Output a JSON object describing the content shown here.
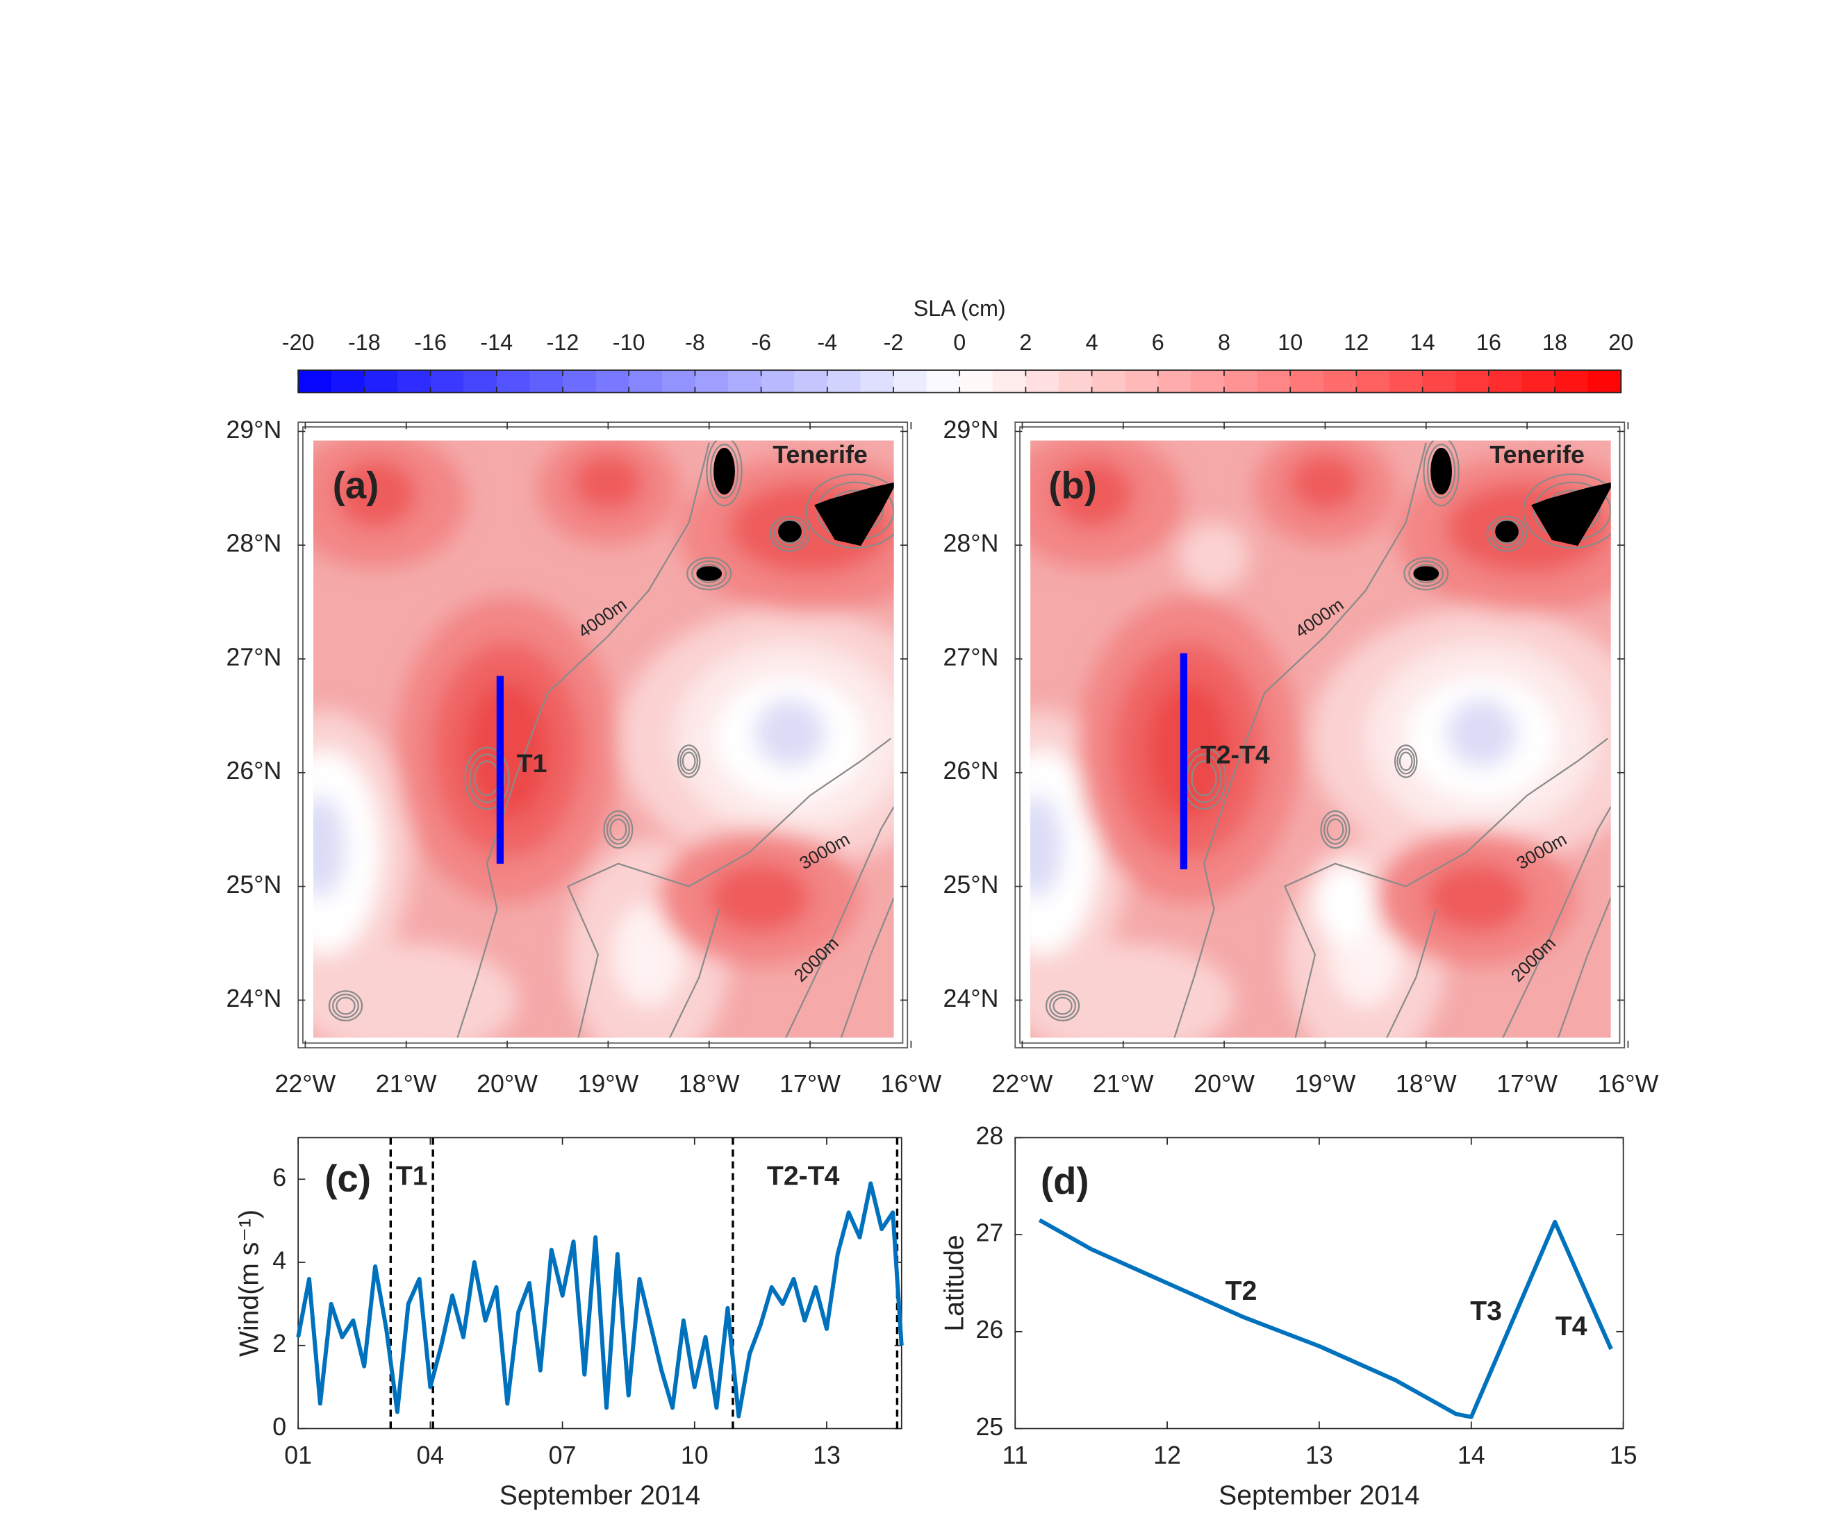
{
  "chart_data": [
    {
      "type": "colorbar",
      "title": "SLA (cm)",
      "xlim": [
        -20,
        20
      ],
      "xticks": [
        -20,
        -18,
        -16,
        -14,
        -12,
        -10,
        -8,
        -6,
        -4,
        -2,
        0,
        2,
        4,
        6,
        8,
        10,
        12,
        14,
        16,
        18,
        20
      ],
      "colors": [
        "#0000ff",
        "#ffffff",
        "#ff0000"
      ]
    },
    {
      "type": "map",
      "panel": "(a)",
      "place_label": "Tenerife",
      "contour_labels": [
        "4000m",
        "3000m",
        "2000m"
      ],
      "xlim": [
        -22,
        -16
      ],
      "ylim": [
        23.55,
        29.05
      ],
      "xticks": [
        {
          "value": -22,
          "label": "22°W"
        },
        {
          "value": -21,
          "label": "21°W"
        },
        {
          "value": -20,
          "label": "20°W"
        },
        {
          "value": -19,
          "label": "19°W"
        },
        {
          "value": -18,
          "label": "18°W"
        },
        {
          "value": -17,
          "label": "17°W"
        },
        {
          "value": -16,
          "label": "16°W"
        }
      ],
      "yticks": [
        {
          "value": 24,
          "label": "24°N"
        },
        {
          "value": 25,
          "label": "25°N"
        },
        {
          "value": 26,
          "label": "26°N"
        },
        {
          "value": 27,
          "label": "27°N"
        },
        {
          "value": 28,
          "label": "28°N"
        },
        {
          "value": 29,
          "label": "29°N"
        }
      ],
      "series": [
        {
          "name": "T1",
          "color": "#0000ff",
          "x": [
            -20.07,
            -20.07
          ],
          "y": [
            26.85,
            25.2
          ]
        }
      ]
    },
    {
      "type": "map",
      "panel": "(b)",
      "place_label": "Tenerife",
      "contour_labels": [
        "4000m",
        "3000m",
        "2000m"
      ],
      "xlim": [
        -22,
        -16
      ],
      "ylim": [
        23.55,
        29.05
      ],
      "xticks": [
        {
          "value": -22,
          "label": "22°W"
        },
        {
          "value": -21,
          "label": "21°W"
        },
        {
          "value": -20,
          "label": "20°W"
        },
        {
          "value": -19,
          "label": "19°W"
        },
        {
          "value": -18,
          "label": "18°W"
        },
        {
          "value": -17,
          "label": "17°W"
        },
        {
          "value": -16,
          "label": "16°W"
        }
      ],
      "yticks": [
        {
          "value": 24,
          "label": "24°N"
        },
        {
          "value": 25,
          "label": "25°N"
        },
        {
          "value": 26,
          "label": "26°N"
        },
        {
          "value": 27,
          "label": "27°N"
        },
        {
          "value": 28,
          "label": "28°N"
        },
        {
          "value": 29,
          "label": "29°N"
        }
      ],
      "series": [
        {
          "name": "T2-T4",
          "color": "#0000ff",
          "x": [
            -20.4,
            -20.4
          ],
          "y": [
            27.05,
            25.15
          ]
        }
      ]
    },
    {
      "type": "line",
      "panel": "(c)",
      "ylabel": "Wind(m s⁻¹)",
      "xlabel": "September 2014",
      "xlim": [
        1,
        14.7
      ],
      "ylim": [
        0,
        7
      ],
      "xticks": [
        {
          "value": 1,
          "label": "01"
        },
        {
          "value": 4,
          "label": "04"
        },
        {
          "value": 7,
          "label": "07"
        },
        {
          "value": 10,
          "label": "10"
        },
        {
          "value": 13,
          "label": "13"
        }
      ],
      "yticks": [
        0,
        2,
        4,
        6
      ],
      "periods": [
        {
          "label": "T1",
          "start": 3.1,
          "end": 4.06
        },
        {
          "label": "T2-T4",
          "start": 10.87,
          "end": 14.6
        }
      ],
      "series": [
        {
          "color": "#0072bd",
          "x": [
            1.0,
            1.25,
            1.5,
            1.75,
            2.0,
            2.25,
            2.5,
            2.75,
            3.0,
            3.25,
            3.5,
            3.75,
            4.0,
            4.25,
            4.5,
            4.75,
            5.0,
            5.25,
            5.5,
            5.75,
            6.0,
            6.25,
            6.5,
            6.75,
            7.0,
            7.25,
            7.5,
            7.75,
            8.0,
            8.25,
            8.5,
            8.75,
            9.0,
            9.25,
            9.5,
            9.75,
            10.0,
            10.25,
            10.5,
            10.75,
            11.0,
            11.25,
            11.5,
            11.75,
            12.0,
            12.25,
            12.5,
            12.75,
            13.0,
            13.25,
            13.5,
            13.75,
            14.0,
            14.25,
            14.5,
            14.7
          ],
          "values": [
            2.2,
            3.6,
            0.6,
            3.0,
            2.2,
            2.6,
            1.5,
            3.9,
            2.4,
            0.4,
            3.0,
            3.6,
            1.0,
            2.0,
            3.2,
            2.2,
            4.0,
            2.6,
            3.4,
            0.6,
            2.8,
            3.5,
            1.4,
            4.3,
            3.2,
            4.5,
            1.3,
            4.6,
            0.5,
            4.2,
            0.8,
            3.6,
            2.5,
            1.4,
            0.5,
            2.6,
            1.0,
            2.2,
            0.5,
            2.9,
            0.3,
            1.8,
            2.5,
            3.4,
            3.0,
            3.6,
            2.6,
            3.4,
            2.4,
            4.2,
            5.2,
            4.6,
            5.9,
            4.8,
            5.2,
            2.0
          ]
        }
      ]
    },
    {
      "type": "line",
      "panel": "(d)",
      "ylabel": "Latitude",
      "xlabel": "September 2014",
      "xlim": [
        11,
        15
      ],
      "ylim": [
        25,
        28
      ],
      "xticks": [
        11,
        12,
        13,
        14,
        15
      ],
      "yticks": [
        25,
        26,
        27,
        28
      ],
      "segment_labels": [
        "T2",
        "T3",
        "T4"
      ],
      "series": [
        {
          "color": "#0072bd",
          "x": [
            11.16,
            11.5,
            12.0,
            12.5,
            13.0,
            13.5,
            13.9,
            14.0,
            14.55,
            14.92
          ],
          "values": [
            27.15,
            26.85,
            26.5,
            26.15,
            25.85,
            25.5,
            25.15,
            25.12,
            27.13,
            25.82
          ]
        }
      ]
    }
  ]
}
